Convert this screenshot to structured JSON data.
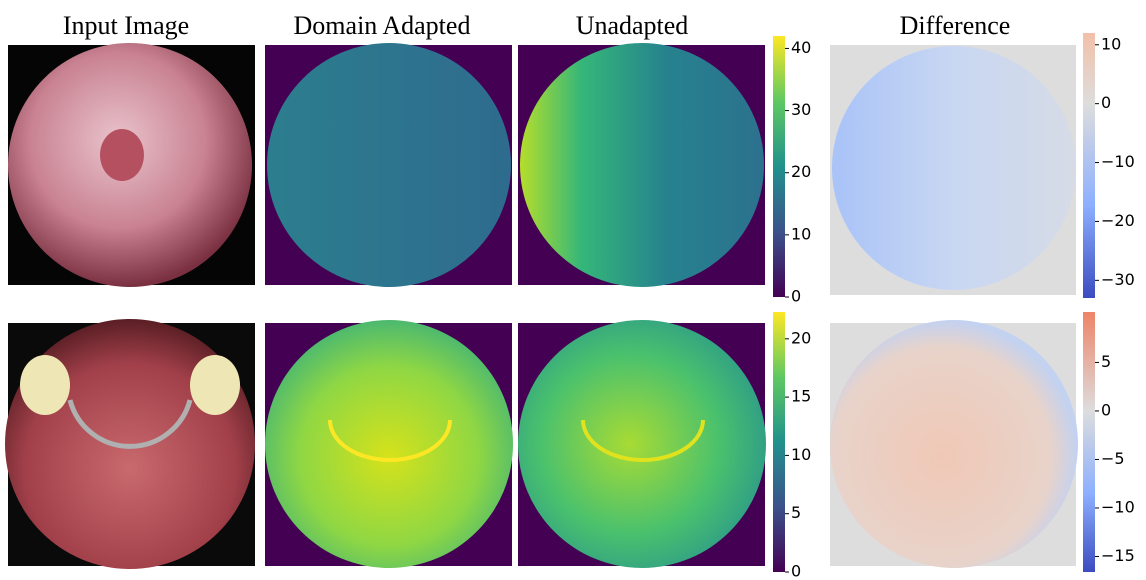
{
  "columns": [
    "Input Image",
    "Domain Adapted",
    "Unadapted",
    "Difference"
  ],
  "colorbars": [
    {
      "lim": [
        0,
        42
      ],
      "ticks": [
        0,
        10,
        20,
        30,
        40
      ]
    },
    {
      "lim": [
        -33,
        12
      ],
      "ticks": [
        {
          "value": -30,
          "label": "−30"
        },
        {
          "value": -20,
          "label": "−20"
        },
        {
          "value": -10,
          "label": "−10"
        },
        0,
        10
      ]
    },
    {
      "lim": [
        0,
        22.3
      ],
      "ticks": [
        0,
        5,
        10,
        15,
        20
      ]
    },
    {
      "lim": [
        -16.6,
        10.2
      ],
      "ticks": [
        {
          "value": -15,
          "label": "−15"
        },
        {
          "value": -10,
          "label": "−10"
        },
        {
          "value": -5,
          "label": "−5"
        },
        0,
        5
      ]
    }
  ]
}
